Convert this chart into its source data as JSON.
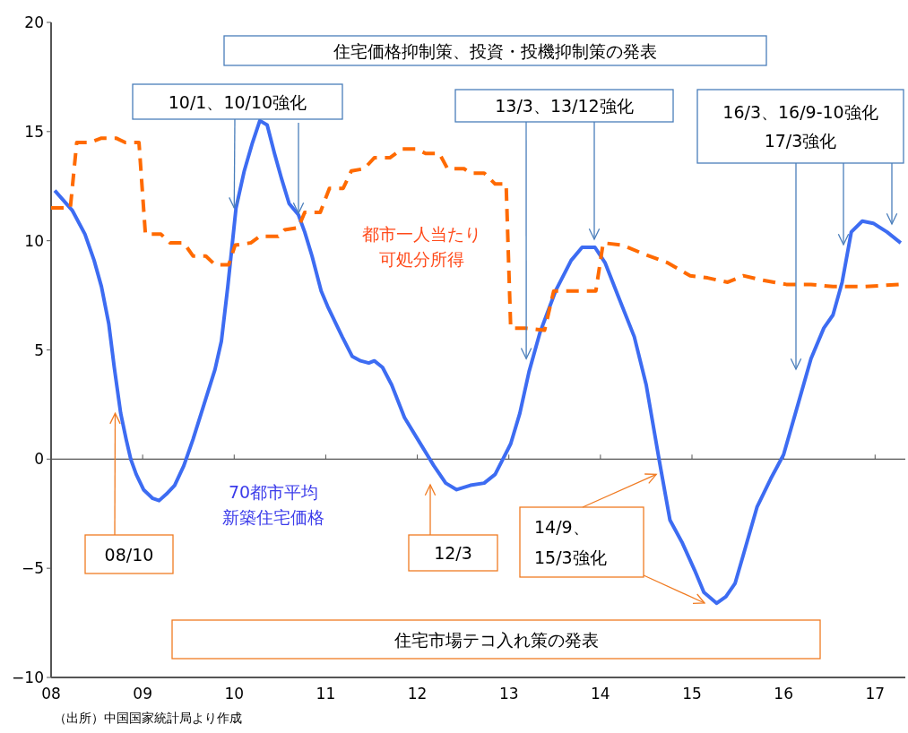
{
  "chart_data": {
    "type": "line",
    "xlim": [
      2008,
      2017.33
    ],
    "ylim": [
      -10,
      20
    ],
    "xticks": [
      {
        "value": 2008,
        "label": "08"
      },
      {
        "value": 2009,
        "label": "09"
      },
      {
        "value": 2010,
        "label": "10"
      },
      {
        "value": 2011,
        "label": "11"
      },
      {
        "value": 2012,
        "label": "12"
      },
      {
        "value": 2013,
        "label": "13"
      },
      {
        "value": 2014,
        "label": "14"
      },
      {
        "value": 2015,
        "label": "15"
      },
      {
        "value": 2016,
        "label": "16"
      },
      {
        "value": 2017,
        "label": "17"
      }
    ],
    "yticks": [
      -10,
      -5,
      0,
      5,
      10,
      15,
      20
    ],
    "legend": false,
    "series": [
      {
        "name": "70都市平均新築住宅価格",
        "color": "#3d6cf2",
        "line_style": "solid",
        "x": [
          2008.04,
          2008.23,
          2008.37,
          2008.47,
          2008.55,
          2008.63,
          2008.69,
          2008.76,
          2008.82,
          2008.87,
          2008.93,
          2009.01,
          2009.11,
          2009.18,
          2009.26,
          2009.35,
          2009.45,
          2009.55,
          2009.67,
          2009.79,
          2009.86,
          2009.93,
          2010.02,
          2010.11,
          2010.2,
          2010.28,
          2010.36,
          2010.44,
          2010.52,
          2010.6,
          2010.7,
          2010.77,
          2010.85,
          2010.95,
          2011.02,
          2011.18,
          2011.29,
          2011.38,
          2011.47,
          2011.53,
          2011.62,
          2011.72,
          2011.86,
          2012.02,
          2012.18,
          2012.31,
          2012.43,
          2012.58,
          2012.73,
          2012.85,
          2013.02,
          2013.12,
          2013.22,
          2013.34,
          2013.51,
          2013.68,
          2013.8,
          2013.94,
          2014.05,
          2014.19,
          2014.37,
          2014.5,
          2014.64,
          2014.76,
          2014.89,
          2015.03,
          2015.13,
          2015.27,
          2015.37,
          2015.47,
          2015.56,
          2015.71,
          2015.86,
          2016.0,
          2016.13,
          2016.3,
          2016.44,
          2016.54,
          2016.64,
          2016.74,
          2016.86,
          2016.98,
          2017.13,
          2017.28
        ],
        "values": [
          12.3,
          11.4,
          10.3,
          9.1,
          7.9,
          6.2,
          4.2,
          2.1,
          0.9,
          0,
          -0.7,
          -1.4,
          -1.8,
          -1.9,
          -1.6,
          -1.2,
          -0.3,
          0.9,
          2.5,
          4.1,
          5.4,
          7.9,
          11.5,
          13.2,
          14.5,
          15.5,
          15.3,
          14.0,
          12.8,
          11.7,
          11.2,
          10.4,
          9.3,
          7.7,
          7.0,
          5.6,
          4.7,
          4.5,
          4.4,
          4.5,
          4.2,
          3.4,
          1.9,
          0.8,
          -0.3,
          -1.1,
          -1.4,
          -1.2,
          -1.1,
          -0.7,
          0.7,
          2.1,
          4.0,
          5.8,
          7.7,
          9.1,
          9.7,
          9.7,
          9.0,
          7.5,
          5.6,
          3.4,
          0,
          -2.8,
          -3.8,
          -5.1,
          -6.1,
          -6.6,
          -6.3,
          -5.7,
          -4.4,
          -2.2,
          -0.9,
          0.2,
          2.1,
          4.6,
          6.0,
          6.6,
          8.1,
          10.4,
          10.9,
          10.8,
          10.4,
          9.9
        ]
      },
      {
        "name": "都市一人当たり可処分所得",
        "color": "#ff6a00",
        "line_style": "dashed",
        "x": [
          2008.0,
          2008.21,
          2008.28,
          2008.42,
          2008.55,
          2008.71,
          2008.81,
          2008.96,
          2009.03,
          2009.2,
          2009.3,
          2009.45,
          2009.55,
          2009.69,
          2009.79,
          2009.94,
          2010.01,
          2010.18,
          2010.28,
          2010.48,
          2010.55,
          2010.7,
          2010.77,
          2010.94,
          2011.04,
          2011.19,
          2011.28,
          2011.42,
          2011.53,
          2011.7,
          2011.83,
          2011.99,
          2012.09,
          2012.24,
          2012.33,
          2012.51,
          2012.58,
          2012.73,
          2012.85,
          2012.97,
          2013.02,
          2013.17,
          2013.39,
          2013.49,
          2013.95,
          2014.03,
          2014.24,
          2014.47,
          2014.73,
          2014.98,
          2015.17,
          2015.39,
          2015.56,
          2015.76,
          2016.03,
          2016.3,
          2016.54,
          2016.88,
          2017.28
        ],
        "values": [
          11.5,
          11.5,
          14.5,
          14.5,
          14.7,
          14.7,
          14.5,
          14.5,
          10.3,
          10.3,
          9.9,
          9.9,
          9.3,
          9.3,
          8.9,
          8.9,
          9.8,
          9.9,
          10.2,
          10.2,
          10.5,
          10.6,
          11.3,
          11.3,
          12.4,
          12.4,
          13.2,
          13.3,
          13.8,
          13.8,
          14.2,
          14.2,
          14.0,
          14.0,
          13.3,
          13.3,
          13.1,
          13.1,
          12.6,
          12.6,
          6.0,
          6.0,
          5.9,
          7.7,
          7.7,
          9.9,
          9.8,
          9.4,
          9.0,
          8.4,
          8.3,
          8.1,
          8.4,
          8.2,
          8.0,
          8.0,
          7.9,
          7.9,
          8.0
        ]
      }
    ],
    "annotations": [
      "住宅価格抑制策、投資・投機抑制策の発表",
      {
        "text": "10/1、10/10強化",
        "x": 2010.0,
        "y": 11.5
      },
      {
        "text": "13/3、13/12強化",
        "x": 2013.19,
        "y": 4.6
      },
      "16/3、16/9-10強化\n17/3強化",
      {
        "text": "08/10",
        "x": 2008.7,
        "y": 2.1
      },
      "12/3",
      {
        "text": "14/9、\n15/3強化",
        "x": 2014.61,
        "y": -0.7
      },
      "住宅市場テコ入れ策の発表",
      "（出所）中国国家統計局より作成"
    ]
  }
}
